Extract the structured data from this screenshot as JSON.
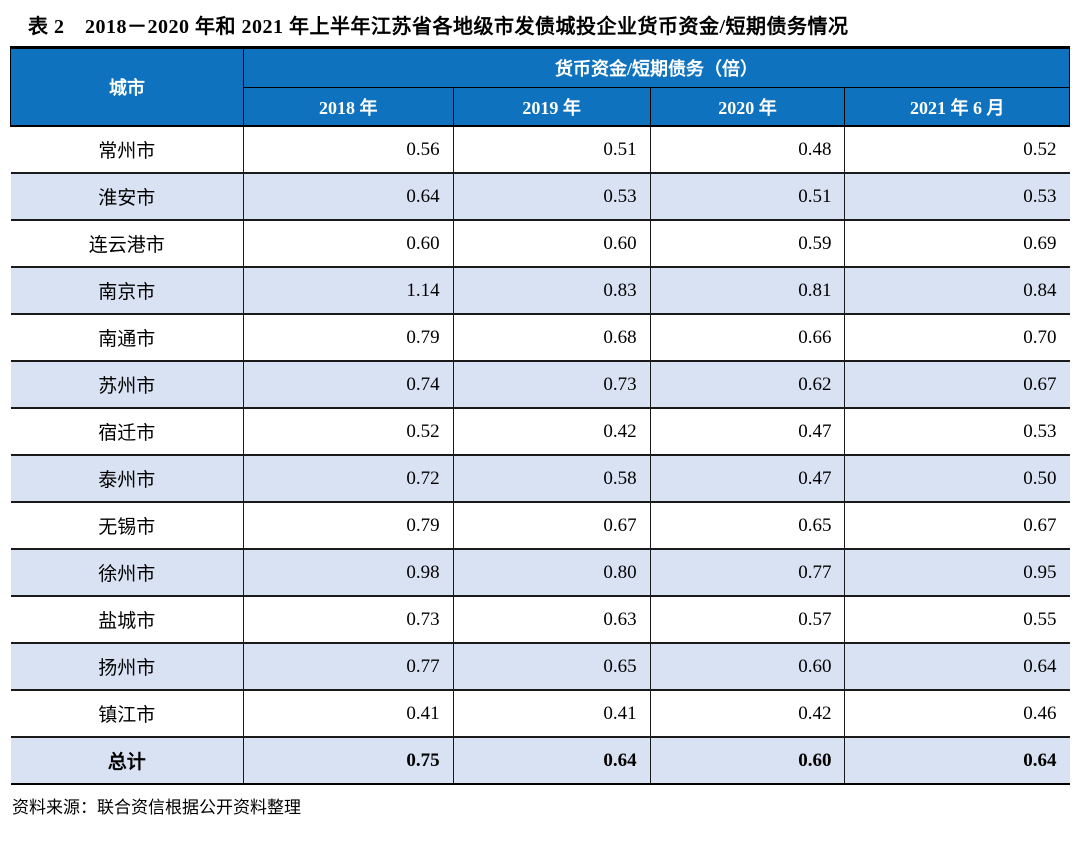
{
  "title": "表 2　2018－2020 年和 2021 年上半年江苏省各地级市发债城投企业货币资金/短期债务情况",
  "table": {
    "col1_header": "城市",
    "group_header": "货币资金/短期债务（倍）",
    "year_headers": [
      "2018 年",
      "2019 年",
      "2020 年",
      "2021 年 6 月"
    ],
    "rows": [
      {
        "city": "常州市",
        "values": [
          "0.56",
          "0.51",
          "0.48",
          "0.52"
        ]
      },
      {
        "city": "淮安市",
        "values": [
          "0.64",
          "0.53",
          "0.51",
          "0.53"
        ]
      },
      {
        "city": "连云港市",
        "values": [
          "0.60",
          "0.60",
          "0.59",
          "0.69"
        ]
      },
      {
        "city": "南京市",
        "values": [
          "1.14",
          "0.83",
          "0.81",
          "0.84"
        ]
      },
      {
        "city": "南通市",
        "values": [
          "0.79",
          "0.68",
          "0.66",
          "0.70"
        ]
      },
      {
        "city": "苏州市",
        "values": [
          "0.74",
          "0.73",
          "0.62",
          "0.67"
        ]
      },
      {
        "city": "宿迁市",
        "values": [
          "0.52",
          "0.42",
          "0.47",
          "0.53"
        ]
      },
      {
        "city": "泰州市",
        "values": [
          "0.72",
          "0.58",
          "0.47",
          "0.50"
        ]
      },
      {
        "city": "无锡市",
        "values": [
          "0.79",
          "0.67",
          "0.65",
          "0.67"
        ]
      },
      {
        "city": "徐州市",
        "values": [
          "0.98",
          "0.80",
          "0.77",
          "0.95"
        ]
      },
      {
        "city": "盐城市",
        "values": [
          "0.73",
          "0.63",
          "0.57",
          "0.55"
        ]
      },
      {
        "city": "扬州市",
        "values": [
          "0.77",
          "0.65",
          "0.60",
          "0.64"
        ]
      },
      {
        "city": "镇江市",
        "values": [
          "0.41",
          "0.41",
          "0.42",
          "0.46"
        ]
      },
      {
        "city": "总计",
        "values": [
          "0.75",
          "0.64",
          "0.60",
          "0.64"
        ],
        "bold": true
      }
    ]
  },
  "footer": "资料来源：联合资信根据公开资料整理",
  "colors": {
    "header_bg": "#0E72BE",
    "header_text": "#FFFFFF",
    "alt_row_bg": "#D9E2F3",
    "border": "#000000"
  }
}
